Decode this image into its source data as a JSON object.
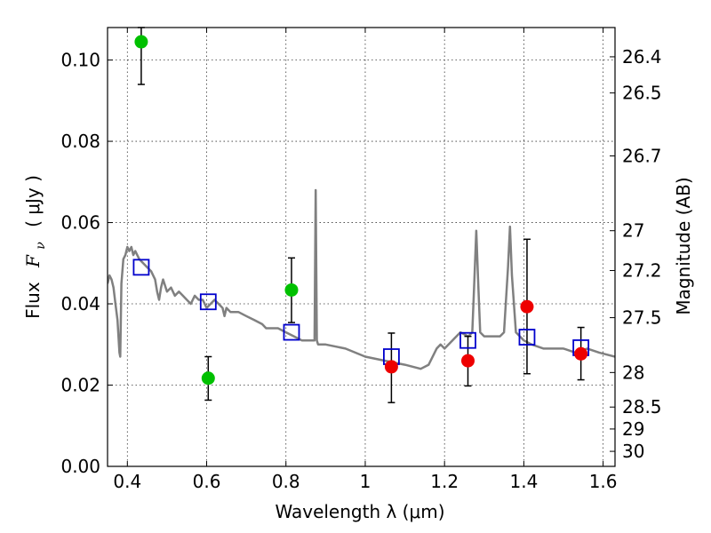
{
  "chart_data": {
    "type": "scatter",
    "xlabel": "Wavelength  λ (μm)",
    "ylabel_left_prefix": "Flux",
    "ylabel_left_symbol": "F",
    "ylabel_left_subscript": "ν",
    "ylabel_left_unit": "( μJy )",
    "ylabel_right": "Magnitude (AB)",
    "xlim": [
      0.35,
      1.63
    ],
    "ylim": [
      0.0,
      0.108
    ],
    "x_ticks": [
      {
        "value": 0.4,
        "label": "0.4"
      },
      {
        "value": 0.6,
        "label": "0.6"
      },
      {
        "value": 0.8,
        "label": "0.8"
      },
      {
        "value": 1.0,
        "label": "1"
      },
      {
        "value": 1.2,
        "label": "1.2"
      },
      {
        "value": 1.4,
        "label": "1.4"
      },
      {
        "value": 1.6,
        "label": "1.6"
      }
    ],
    "y_ticks": [
      {
        "value": 0.0,
        "label": "0.00"
      },
      {
        "value": 0.02,
        "label": "0.02"
      },
      {
        "value": 0.04,
        "label": "0.04"
      },
      {
        "value": 0.06,
        "label": "0.06"
      },
      {
        "value": 0.08,
        "label": "0.08"
      },
      {
        "value": 0.1,
        "label": "0.10"
      }
    ],
    "right_ticks": [
      {
        "label": "26.4",
        "flux": 0.1008
      },
      {
        "label": "26.5",
        "flux": 0.0919
      },
      {
        "label": "26.7",
        "flux": 0.0764
      },
      {
        "label": "27",
        "flux": 0.058
      },
      {
        "label": "27.2",
        "flux": 0.0482
      },
      {
        "label": "27.5",
        "flux": 0.0366
      },
      {
        "label": "28",
        "flux": 0.0231
      },
      {
        "label": "28.5",
        "flux": 0.0146
      },
      {
        "label": "29",
        "flux": 0.0092
      },
      {
        "label": "30",
        "flux": 0.0037
      }
    ],
    "grid": true,
    "colors": {
      "model": "#808080",
      "green_points": "#00c000",
      "red_points": "#ee0000",
      "model_photometry": "#0000cc",
      "error_bars": "#000000"
    },
    "model_spectrum": {
      "x": [
        0.35,
        0.355,
        0.36,
        0.365,
        0.37,
        0.375,
        0.38,
        0.382,
        0.385,
        0.39,
        0.395,
        0.4,
        0.405,
        0.41,
        0.415,
        0.42,
        0.43,
        0.44,
        0.45,
        0.46,
        0.47,
        0.475,
        0.48,
        0.485,
        0.49,
        0.5,
        0.51,
        0.52,
        0.53,
        0.54,
        0.55,
        0.56,
        0.57,
        0.58,
        0.59,
        0.6,
        0.62,
        0.63,
        0.64,
        0.645,
        0.65,
        0.66,
        0.68,
        0.7,
        0.72,
        0.74,
        0.75,
        0.76,
        0.78,
        0.8,
        0.82,
        0.84,
        0.86,
        0.872,
        0.875,
        0.878,
        0.881,
        0.884,
        0.9,
        0.95,
        1.0,
        1.05,
        1.1,
        1.14,
        1.16,
        1.18,
        1.19,
        1.2,
        1.22,
        1.24,
        1.26,
        1.27,
        1.275,
        1.28,
        1.285,
        1.29,
        1.3,
        1.32,
        1.34,
        1.35,
        1.36,
        1.365,
        1.37,
        1.38,
        1.4,
        1.42,
        1.45,
        1.5,
        1.53,
        1.56,
        1.59,
        1.63
      ],
      "y": [
        0.045,
        0.047,
        0.046,
        0.044,
        0.04,
        0.036,
        0.028,
        0.027,
        0.045,
        0.051,
        0.052,
        0.054,
        0.053,
        0.054,
        0.052,
        0.053,
        0.051,
        0.05,
        0.049,
        0.048,
        0.046,
        0.043,
        0.041,
        0.044,
        0.046,
        0.043,
        0.044,
        0.042,
        0.043,
        0.042,
        0.041,
        0.04,
        0.042,
        0.041,
        0.041,
        0.039,
        0.041,
        0.04,
        0.039,
        0.037,
        0.039,
        0.038,
        0.038,
        0.037,
        0.036,
        0.035,
        0.034,
        0.034,
        0.034,
        0.033,
        0.032,
        0.031,
        0.031,
        0.031,
        0.068,
        0.031,
        0.03,
        0.03,
        0.03,
        0.029,
        0.027,
        0.026,
        0.025,
        0.024,
        0.025,
        0.029,
        0.03,
        0.029,
        0.031,
        0.033,
        0.032,
        0.033,
        0.045,
        0.058,
        0.045,
        0.033,
        0.032,
        0.032,
        0.032,
        0.033,
        0.049,
        0.059,
        0.047,
        0.033,
        0.031,
        0.03,
        0.029,
        0.029,
        0.028,
        0.029,
        0.028,
        0.027
      ]
    },
    "green_points": [
      {
        "x": 0.435,
        "y": 0.1045,
        "yerr_low": 0.094,
        "yerr_high": 0.108
      },
      {
        "x": 0.604,
        "y": 0.0217,
        "yerr_low": 0.0163,
        "yerr_high": 0.027
      },
      {
        "x": 0.814,
        "y": 0.0434,
        "yerr_low": 0.0354,
        "yerr_high": 0.0513
      }
    ],
    "red_points": [
      {
        "x": 1.066,
        "y": 0.0245,
        "yerr_low": 0.0157,
        "yerr_high": 0.0328
      },
      {
        "x": 1.259,
        "y": 0.026,
        "yerr_low": 0.0198,
        "yerr_high": 0.032
      },
      {
        "x": 1.408,
        "y": 0.0393,
        "yerr_low": 0.0228,
        "yerr_high": 0.0559
      },
      {
        "x": 1.544,
        "y": 0.0277,
        "yerr_low": 0.0213,
        "yerr_high": 0.0342
      }
    ],
    "model_photometry": [
      {
        "x": 0.435,
        "y": 0.049
      },
      {
        "x": 0.604,
        "y": 0.0405
      },
      {
        "x": 0.814,
        "y": 0.033
      },
      {
        "x": 1.066,
        "y": 0.027
      },
      {
        "x": 1.259,
        "y": 0.031
      },
      {
        "x": 1.408,
        "y": 0.0318
      },
      {
        "x": 1.544,
        "y": 0.0292
      }
    ]
  }
}
